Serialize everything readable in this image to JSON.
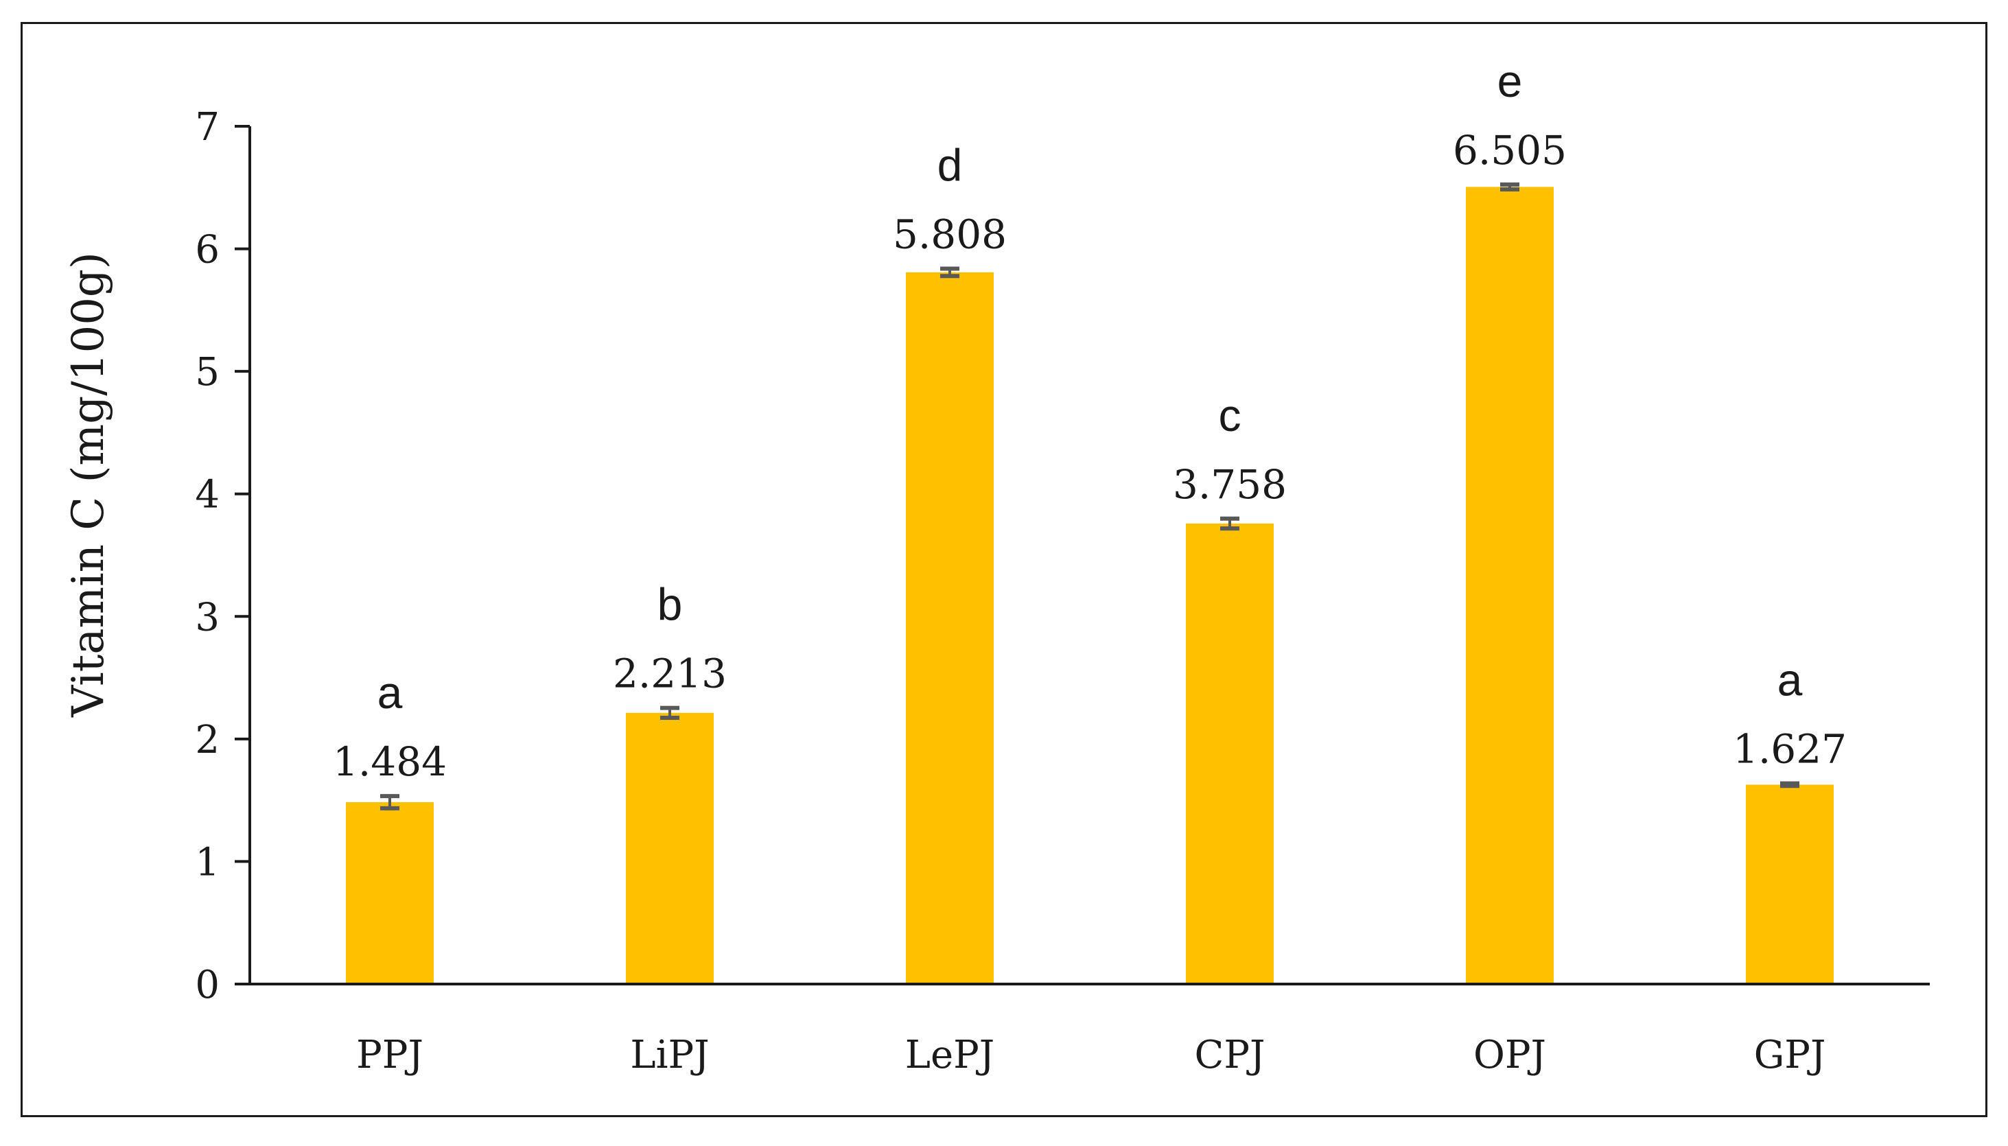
{
  "chart_data": {
    "type": "bar",
    "title": "",
    "xlabel": "",
    "ylabel": "Vitamin C (mg/100g)",
    "ylim": [
      0,
      7
    ],
    "yticks": [
      0,
      1,
      2,
      3,
      4,
      5,
      6,
      7
    ],
    "categories": [
      "PPJ",
      "LiPJ",
      "LePJ",
      "CPJ",
      "OPJ",
      "GPJ"
    ],
    "values": [
      1.484,
      2.213,
      5.808,
      3.758,
      6.505,
      1.627
    ],
    "value_labels": [
      "1.484",
      "2.213",
      "5.808",
      "3.758",
      "6.505",
      "1.627"
    ],
    "errors": [
      0.05,
      0.04,
      0.03,
      0.04,
      0.02,
      0.01
    ],
    "significance_letters": [
      "a",
      "b",
      "d",
      "c",
      "e",
      "a"
    ],
    "grid": false,
    "legend": "none",
    "colors": {
      "bar": "#FFC000",
      "error_bar": "#595959",
      "axis": "#1a1a1a"
    }
  }
}
